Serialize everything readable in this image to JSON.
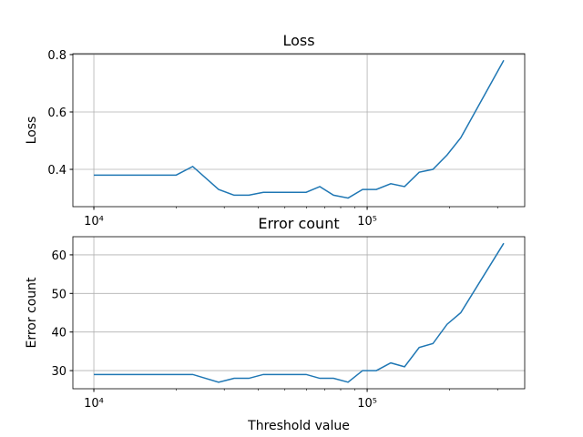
{
  "chart_data": [
    {
      "type": "line",
      "title": "Loss",
      "ylabel": "Loss",
      "log_x": true,
      "grid": true,
      "x": [
        10000,
        20000,
        23000,
        28600,
        32600,
        36900,
        41700,
        47100,
        52900,
        59800,
        67100,
        75300,
        85100,
        96200,
        108000,
        122000,
        137000,
        155000,
        174000,
        196000,
        220000,
        316000
      ],
      "series": [
        {
          "name": "Loss",
          "color": "#1f77b4",
          "values": [
            0.38,
            0.38,
            0.41,
            0.33,
            0.31,
            0.31,
            0.32,
            0.32,
            0.32,
            0.32,
            0.34,
            0.31,
            0.3,
            0.33,
            0.33,
            0.35,
            0.34,
            0.39,
            0.4,
            0.45,
            0.51,
            0.78
          ]
        }
      ],
      "xlim": [
        8380,
        377000
      ],
      "xticks": [
        {
          "value": 10000,
          "label": "10⁴"
        },
        {
          "value": 100000,
          "label": "10⁵"
        }
      ],
      "xminorticks": [
        20000,
        30000,
        40000,
        50000,
        60000,
        70000,
        80000,
        90000,
        200000,
        300000
      ],
      "ylim": [
        0.27,
        0.803
      ],
      "yticks": [
        0.4,
        0.6,
        0.8
      ]
    },
    {
      "type": "line",
      "title": "Error count",
      "ylabel": "Error count",
      "xlabel": "Threshold value",
      "log_x": true,
      "grid": true,
      "x": [
        10000,
        20000,
        23000,
        28600,
        32600,
        36900,
        41700,
        47100,
        52900,
        59800,
        67100,
        75300,
        85100,
        96200,
        108000,
        122000,
        137000,
        155000,
        174000,
        196000,
        220000,
        316000
      ],
      "series": [
        {
          "name": "Error count",
          "color": "#1f77b4",
          "values": [
            29,
            29,
            29,
            27,
            28,
            28,
            29,
            29,
            29,
            29,
            28,
            28,
            27,
            30,
            30,
            32,
            31,
            36,
            37,
            42,
            45,
            63
          ]
        }
      ],
      "xlim": [
        8380,
        377000
      ],
      "xticks": [
        {
          "value": 10000,
          "label": "10⁴"
        },
        {
          "value": 100000,
          "label": "10⁵"
        }
      ],
      "xminorticks": [
        20000,
        30000,
        40000,
        50000,
        60000,
        70000,
        80000,
        90000,
        200000,
        300000
      ],
      "ylim": [
        25.3,
        64.7
      ],
      "yticks": [
        30,
        40,
        50,
        60
      ]
    }
  ]
}
